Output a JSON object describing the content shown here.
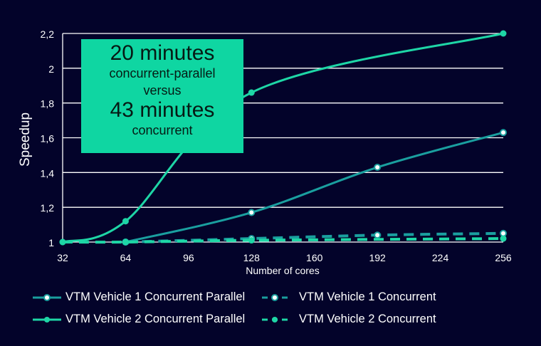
{
  "chart_data": {
    "type": "line",
    "ylabel": "Speedup",
    "xlabel": "Number  of cores",
    "xticks": [
      "32",
      "64",
      "96",
      "128",
      "160",
      "192",
      "224",
      "256"
    ],
    "yticks": [
      "1",
      "1,2",
      "1,4",
      "1,6",
      "1,8",
      "2",
      "2,2"
    ],
    "xlim": [
      32,
      256
    ],
    "ylim": [
      1,
      2.2
    ],
    "grid": "horizontal",
    "legend_position": "bottom",
    "series": [
      {
        "name": "VTM Vehicle 1 Concurrent Parallel",
        "color": "#1a9f9f",
        "dashed": false,
        "marker": "hollow",
        "x": [
          64,
          128,
          192,
          256
        ],
        "y": [
          1.0,
          1.17,
          1.43,
          1.63
        ]
      },
      {
        "name": "VTM Vehicle 1 Concurrent",
        "color": "#1a9f9f",
        "dashed": true,
        "marker": "hollow",
        "x": [
          64,
          128,
          192,
          256
        ],
        "y": [
          1.0,
          1.02,
          1.04,
          1.05
        ]
      },
      {
        "name": "VTM Vehicle 2 Concurrent Parallel",
        "color": "#1ed6a6",
        "dashed": false,
        "marker": "filled",
        "x": [
          32,
          64,
          128,
          256
        ],
        "y": [
          1.0,
          1.12,
          1.86,
          2.2
        ]
      },
      {
        "name": "VTM Vehicle 2 Concurrent",
        "color": "#1ed6a6",
        "dashed": true,
        "marker": "filled",
        "x": [
          32,
          64,
          128,
          256
        ],
        "y": [
          1.0,
          1.0,
          1.01,
          1.02
        ]
      }
    ],
    "annotation": {
      "line1": "20 minutes",
      "line2": "concurrent-parallel",
      "line3": "versus",
      "line4": "43 minutes",
      "line5": "concurrent"
    }
  }
}
